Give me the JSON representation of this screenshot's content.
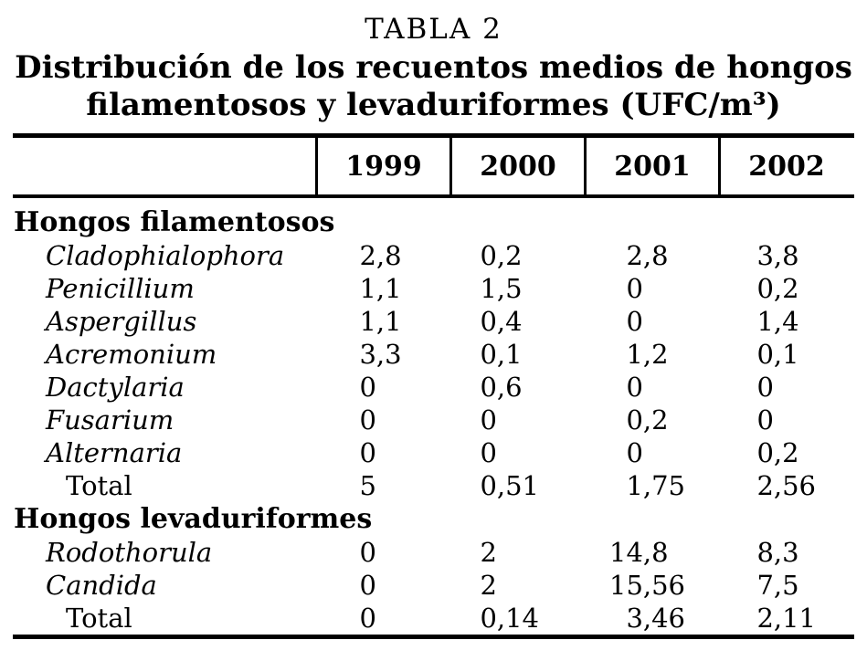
{
  "table": {
    "label": "TABLA 2",
    "title_lines": [
      "Distribución de los recuentos medios de hongos",
      "filamentosos y levaduriformes (UFC/m³)"
    ],
    "columns": [
      "1999",
      "2000",
      "2001",
      "2002"
    ],
    "sections": [
      {
        "header": "Hongos filamentosos",
        "rows": [
          {
            "name": "Cladophialophora",
            "style": "genus",
            "values": [
              "2,8",
              "0,2",
              "2,8",
              "3,8"
            ]
          },
          {
            "name": "Penicillium",
            "style": "genus",
            "values": [
              "1,1",
              "1,5",
              "0",
              "0,2"
            ]
          },
          {
            "name": "Aspergillus",
            "style": "genus",
            "values": [
              "1,1",
              "0,4",
              "0",
              "1,4"
            ]
          },
          {
            "name": "Acremonium",
            "style": "genus",
            "values": [
              "3,3",
              "0,1",
              "1,2",
              "0,1"
            ]
          },
          {
            "name": "Dactylaria",
            "style": "genus",
            "values": [
              "0",
              "0,6",
              "0",
              "0"
            ]
          },
          {
            "name": "Fusarium",
            "style": "genus",
            "values": [
              "0",
              "0",
              "0,2",
              "0"
            ]
          },
          {
            "name": "Alternaria",
            "style": "genus",
            "values": [
              "0",
              "0",
              "0",
              "0,2"
            ]
          },
          {
            "name": "Total",
            "style": "total",
            "values": [
              "5",
              "0,51",
              "1,75",
              "2,56"
            ]
          }
        ]
      },
      {
        "header": "Hongos levaduriformes",
        "rows": [
          {
            "name": "Rodothorula",
            "style": "genus",
            "values": [
              "0",
              "2",
              "14,8",
              "8,3"
            ]
          },
          {
            "name": "Candida",
            "style": "genus",
            "values": [
              "0",
              "2",
              "15,56",
              "7,5"
            ]
          },
          {
            "name": "Total",
            "style": "total",
            "values": [
              "0",
              "0,14",
              "3,46",
              "2,11"
            ]
          }
        ]
      }
    ]
  },
  "colors": {
    "ink": "#000000",
    "paper": "#ffffff"
  }
}
